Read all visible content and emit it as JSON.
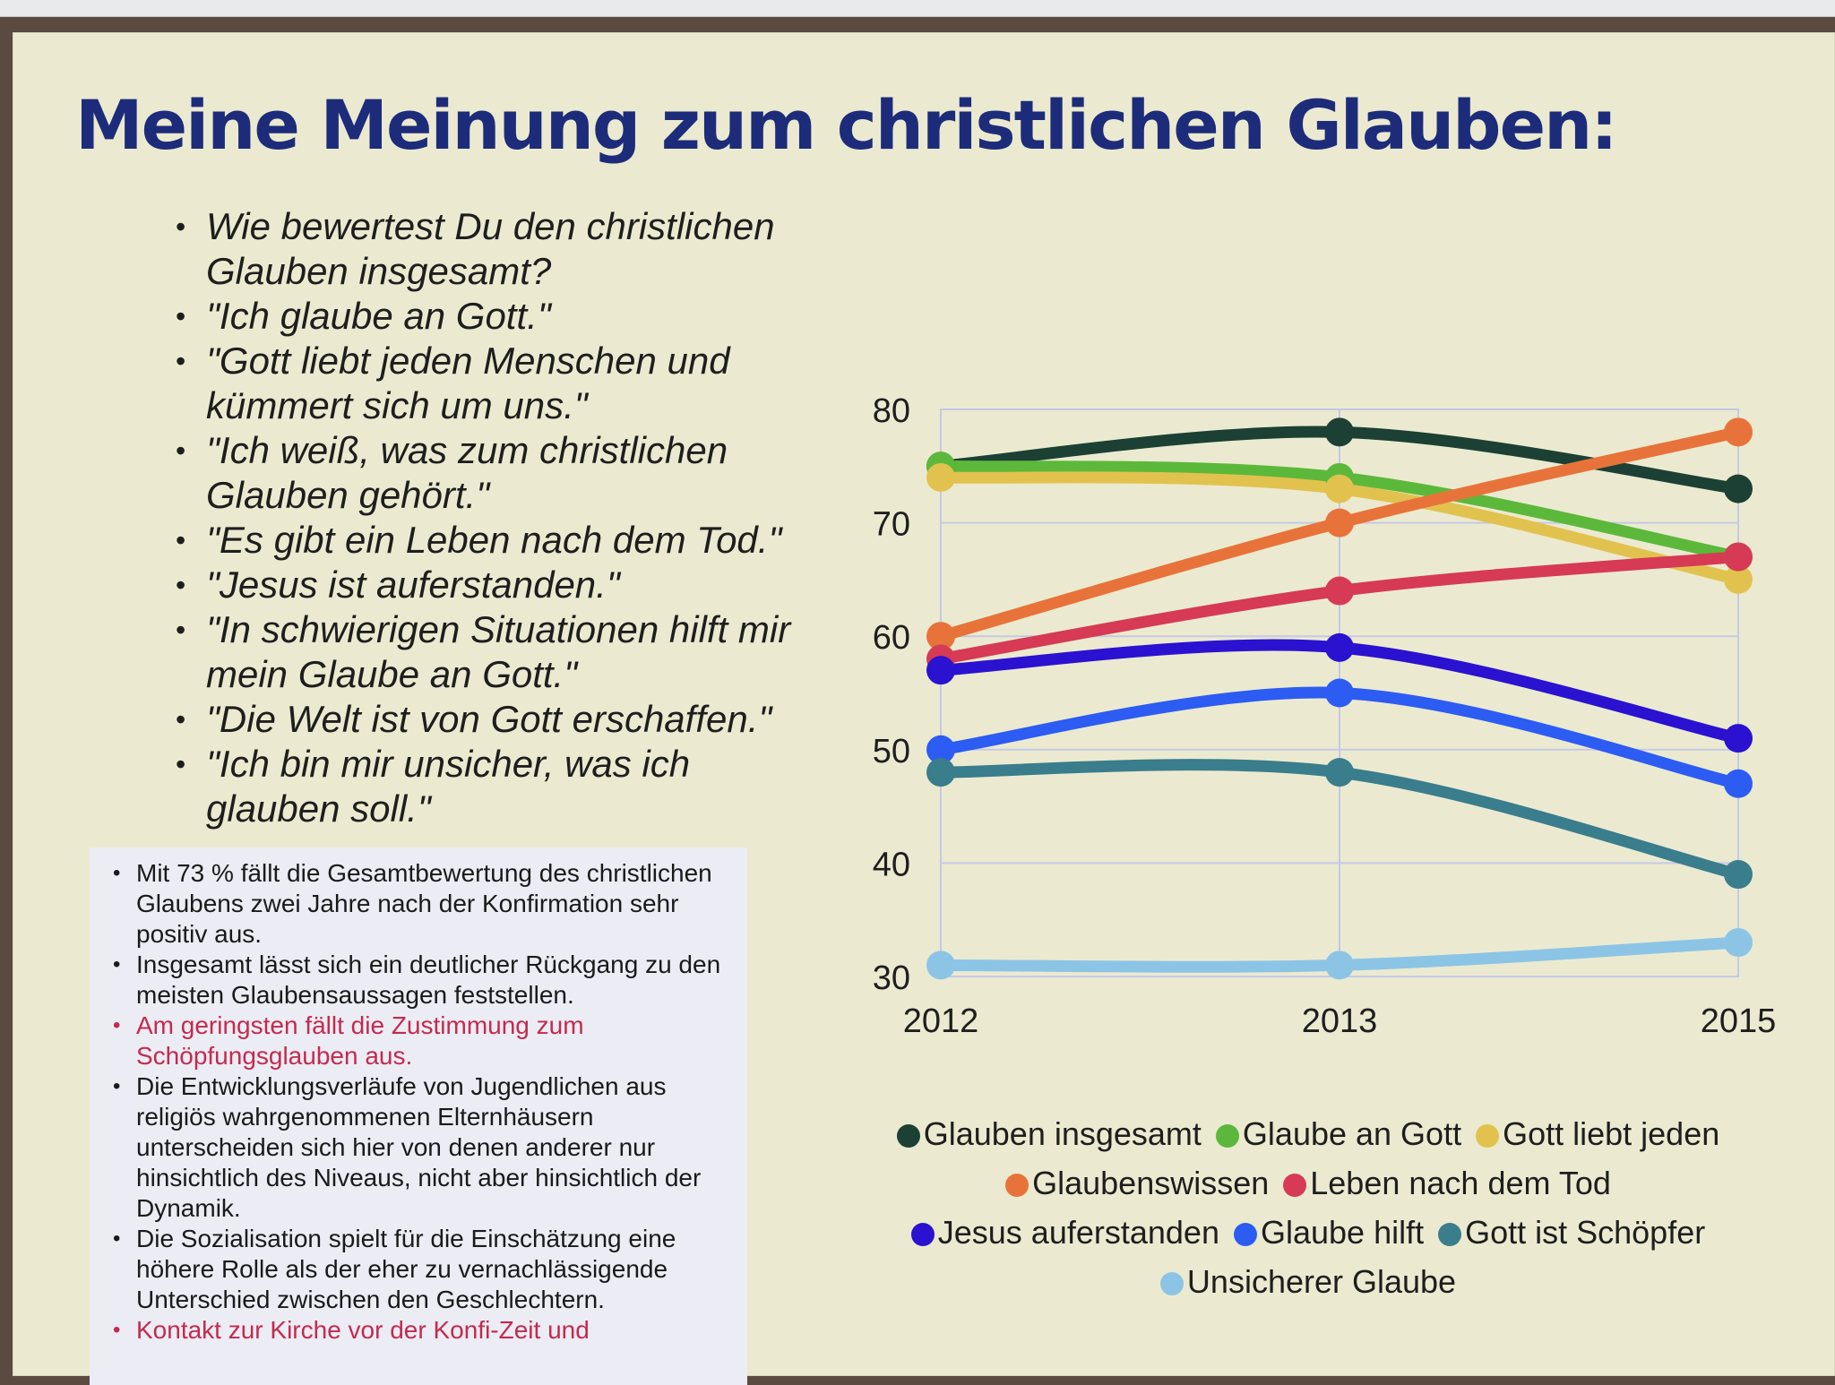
{
  "title": "Meine Meinung zum christlichen Glauben:",
  "questions": [
    "Wie bewertest Du den christlichen Glauben insgesamt?",
    "\"Ich glaube an Gott.\"",
    "\"Gott liebt jeden Menschen und kümmert sich um uns.\"",
    "\"Ich weiß, was zum christlichen Glauben gehört.\"",
    "\"Es gibt ein Leben nach dem Tod.\"",
    "\"Jesus ist auferstanden.\"",
    "\"In schwierigen Situationen hilft mir mein Glaube an Gott.\"",
    "\"Die Welt ist von Gott erschaffen.\"",
    "\"Ich bin mir unsicher, was ich glauben soll.\""
  ],
  "notes": [
    {
      "text": "Mit 73 % fällt die Gesamtbewertung des christlichen Glaubens zwei Jahre nach der Konfirmation sehr positiv aus.",
      "color": "#1a1a1a"
    },
    {
      "text": "Insgesamt lässt sich ein deutlicher Rückgang zu den meisten Glaubensaussagen feststellen.",
      "color": "#1a1a1a"
    },
    {
      "text": "Am geringsten fällt die Zustimmung zum Schöpfungsglauben aus.",
      "color": "#c22b4e"
    },
    {
      "text": "Die Entwicklungsverläufe von Jugendlichen aus religiös wahrgenommenen Elternhäusern unterscheiden sich hier von denen anderer nur hinsichtlich des Niveaus, nicht aber hinsichtlich der Dynamik.",
      "color": "#1a1a1a"
    },
    {
      "text": "Die Sozialisation spielt für die Einschätzung eine höhere Rolle als der eher zu vernachlässigende Unterschied zwischen den Geschlechtern.",
      "color": "#1a1a1a"
    },
    {
      "text": "Kontakt zur Kirche vor der Konfi-Zeit und",
      "color": "#c22b4e"
    }
  ],
  "chart_data": {
    "type": "line",
    "title": "",
    "xlabel": "",
    "ylabel": "",
    "categories": [
      "2012",
      "2013",
      "2015"
    ],
    "ylim": [
      30,
      80
    ],
    "yticks": [
      30,
      40,
      50,
      60,
      70,
      80
    ],
    "grid": true,
    "legend_position": "bottom",
    "series": [
      {
        "name": "Glauben insgesamt",
        "color": "#1c4034",
        "values": [
          75,
          78,
          73
        ]
      },
      {
        "name": "Glaube an Gott",
        "color": "#5cb83a",
        "values": [
          75,
          74,
          67
        ]
      },
      {
        "name": "Gott liebt jeden",
        "color": "#e2c24e",
        "values": [
          74,
          73,
          65
        ]
      },
      {
        "name": "Glaubenswissen",
        "color": "#e8733a",
        "values": [
          60,
          70,
          78
        ]
      },
      {
        "name": "Leben nach dem Tod",
        "color": "#d63a55",
        "values": [
          58,
          64,
          67
        ]
      },
      {
        "name": "Jesus auferstanden",
        "color": "#2a12d0",
        "values": [
          57,
          59,
          51
        ]
      },
      {
        "name": "Glaube hilft",
        "color": "#2d5cf2",
        "values": [
          50,
          55,
          47
        ]
      },
      {
        "name": "Gott ist Schöpfer",
        "color": "#3a7d8c",
        "values": [
          48,
          48,
          39
        ]
      },
      {
        "name": "Unsicherer Glaube",
        "color": "#8cc4e6",
        "values": [
          31,
          31,
          33
        ]
      }
    ]
  }
}
